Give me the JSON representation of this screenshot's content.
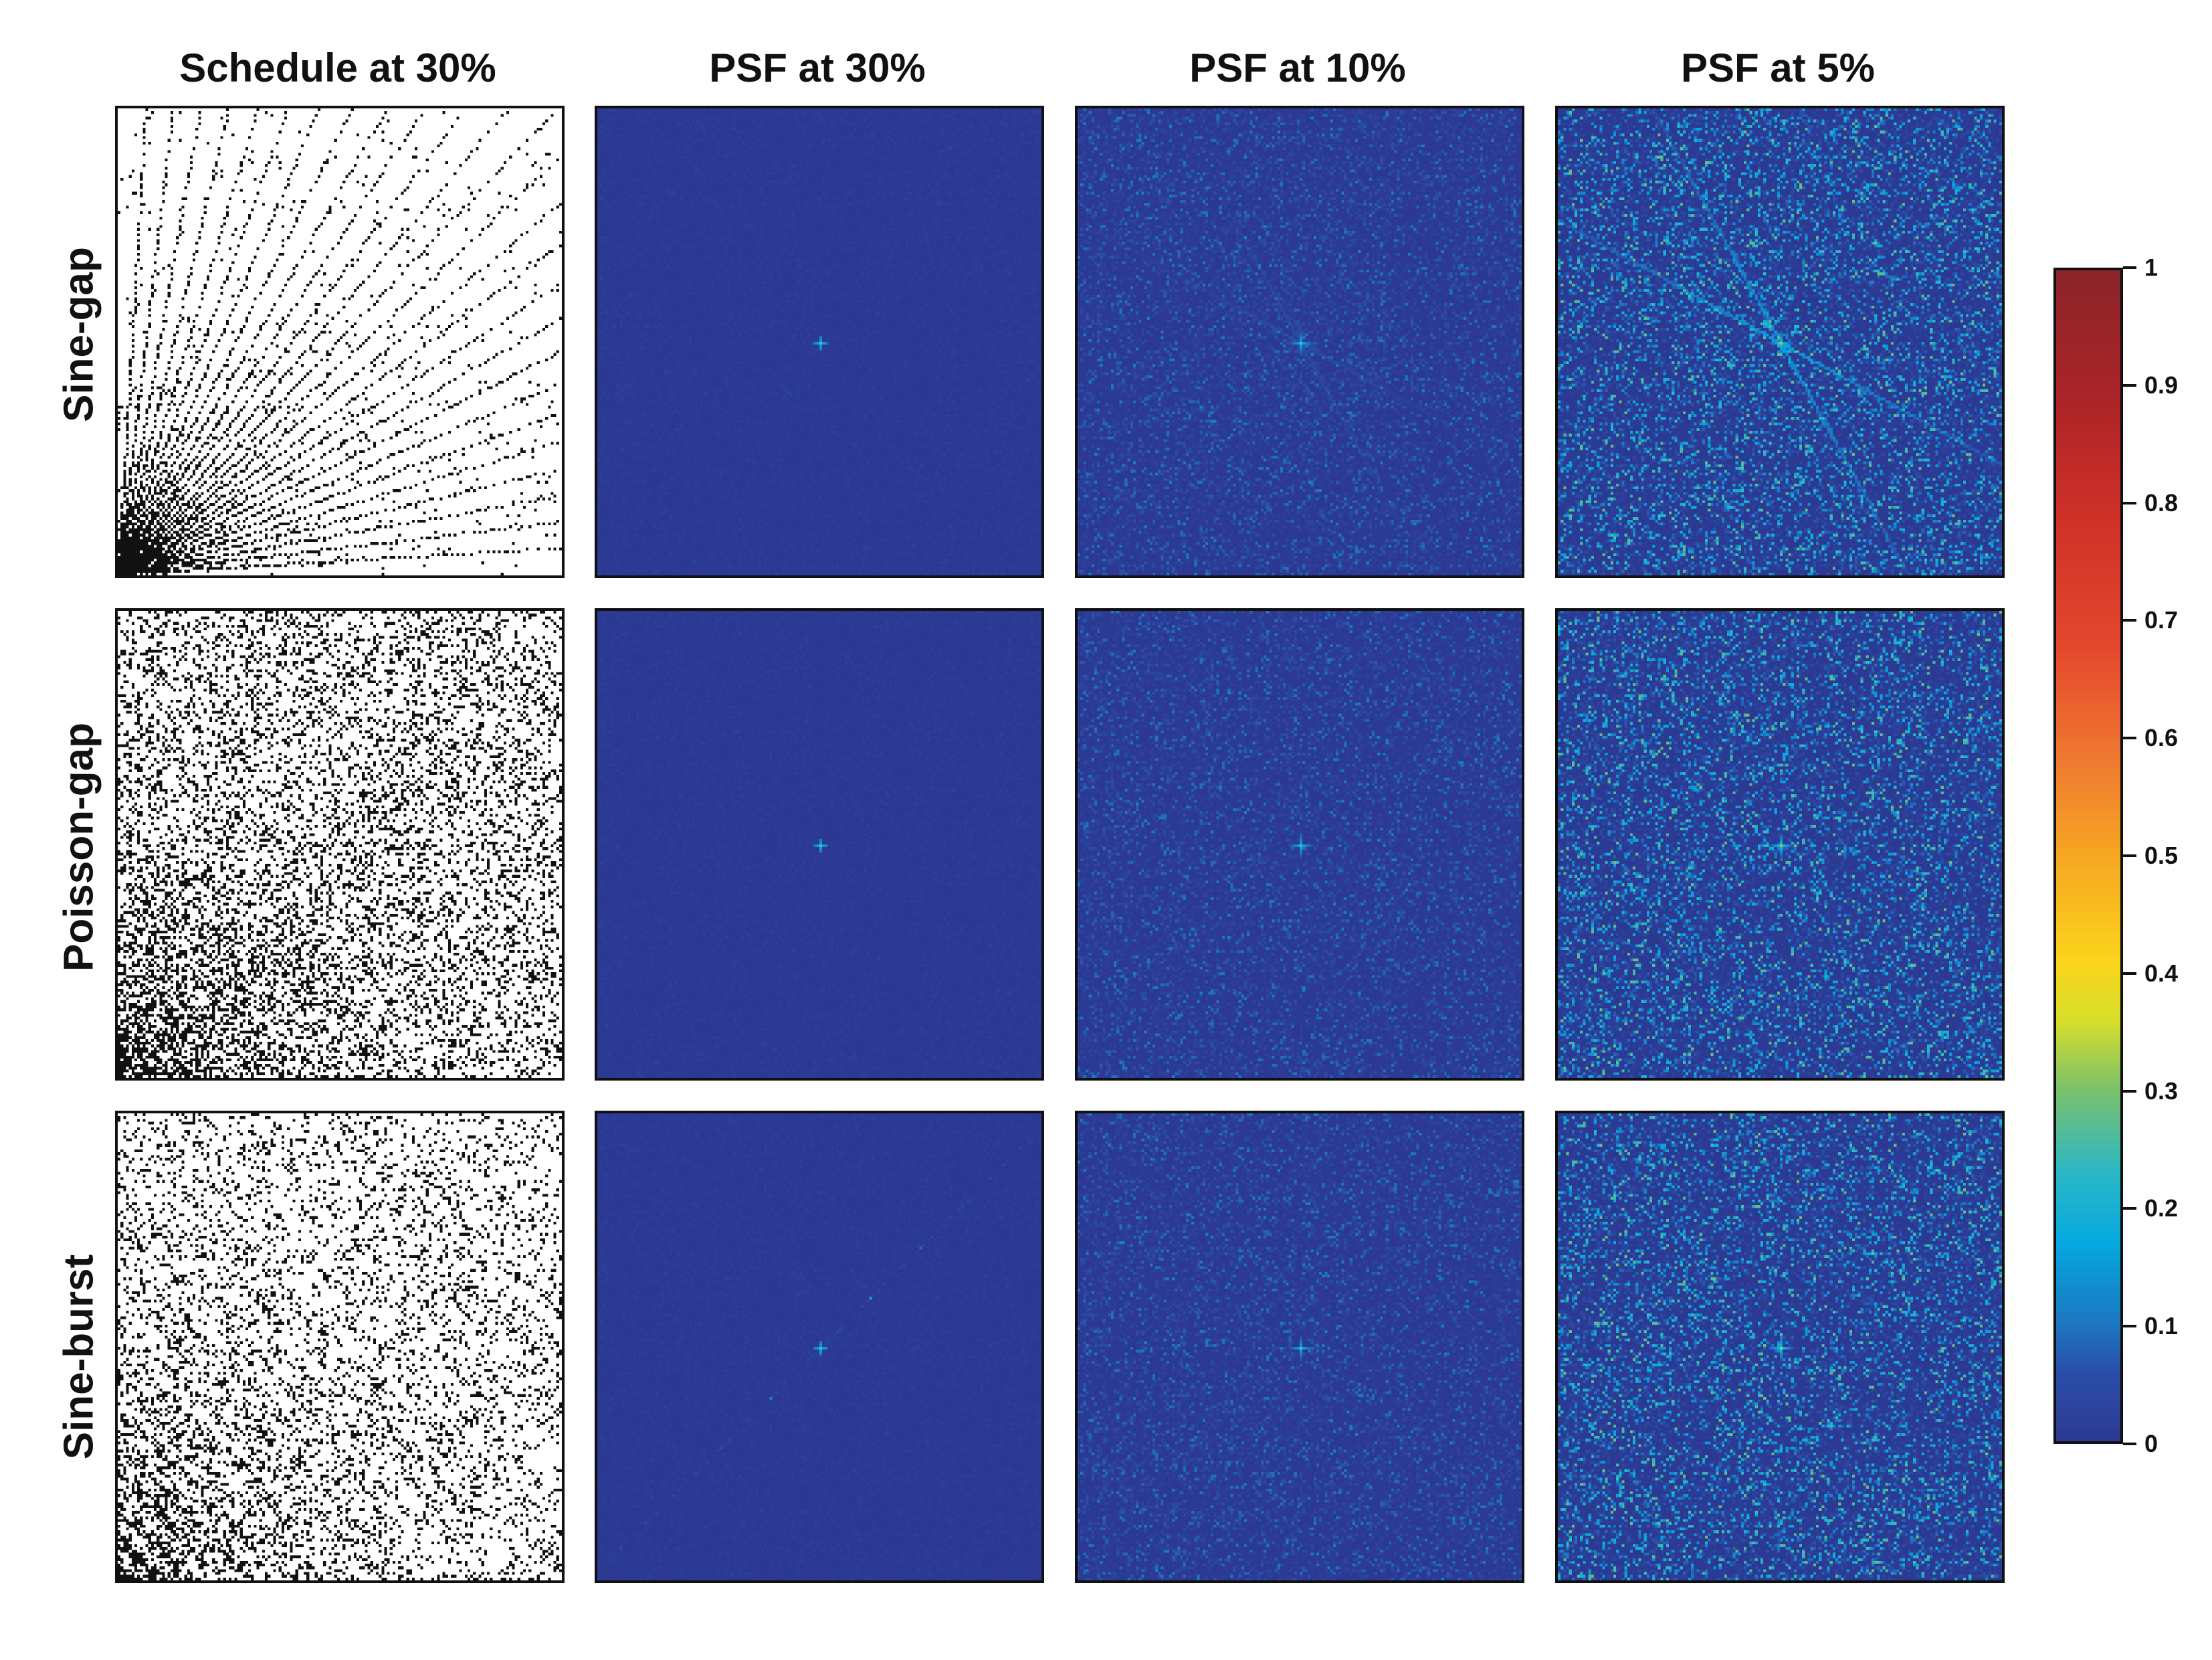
{
  "columns": [
    "Schedule at 30%",
    "PSF at 30%",
    "PSF at 10%",
    "PSF at 5%"
  ],
  "rows": [
    "Sine-gap",
    "Poisson-gap",
    "Sine-burst"
  ],
  "colorbar": {
    "min": 0,
    "max": 1,
    "tick_labels": [
      "0",
      "0.1",
      "0.2",
      "0.3",
      "0.4",
      "0.5",
      "0.6",
      "0.7",
      "0.8",
      "0.9",
      "1"
    ],
    "colormap": "jet-like (blue to red)"
  },
  "colors": {
    "psf_background": "#2e3992",
    "psf_peak": "#7ac06a",
    "schedule_points": "#111111"
  }
}
